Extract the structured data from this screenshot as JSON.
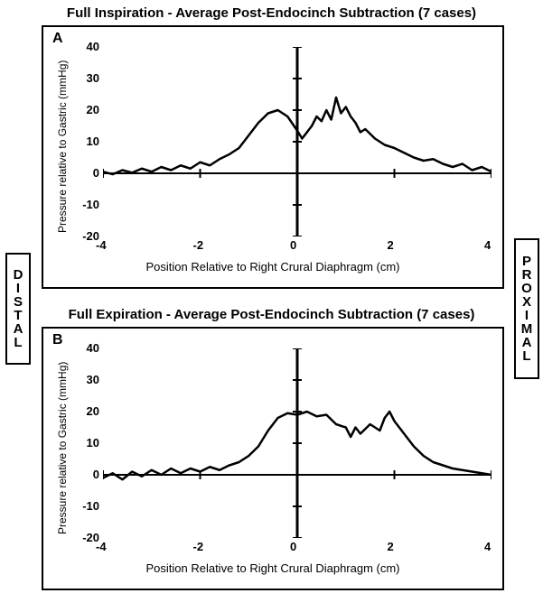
{
  "figure": {
    "background_color": "#ffffff",
    "border_color": "#000000",
    "title_fontsize": 15,
    "panel_letter_fontsize": 16,
    "axis_label_fontsize": 13,
    "tick_fontsize": 13,
    "side_label_fontsize": 15,
    "line_color": "#000000",
    "axis_line_color": "#000000",
    "tick_color": "#000000",
    "line_width": 2.5,
    "axis_width": 2,
    "zero_line_width": 3,
    "side_labels": {
      "left": "DISTAL",
      "right": "PROXIMAL"
    }
  },
  "chartA": {
    "type": "line",
    "title": "Full Inspiration - Average Post-Endocinch Subtraction (7 cases)",
    "panel_letter": "A",
    "xlabel": "Position Relative to Right Crural Diaphragm (cm)",
    "ylabel": "Pressure relative to Gastric (mmHg)",
    "xlim": [
      -4,
      4
    ],
    "ylim": [
      -20,
      40
    ],
    "xticks": [
      -4,
      -2,
      0,
      2,
      4
    ],
    "xtick_labels": [
      "-4",
      "-2",
      "0",
      "2",
      "4"
    ],
    "yticks": [
      -20,
      -10,
      0,
      10,
      20,
      30,
      40
    ],
    "ytick_labels": [
      "-20",
      "-10",
      "0",
      "10",
      "20",
      "30",
      "40"
    ],
    "series": {
      "x": [
        -4.0,
        -3.8,
        -3.6,
        -3.4,
        -3.2,
        -3.0,
        -2.8,
        -2.6,
        -2.4,
        -2.2,
        -2.0,
        -1.8,
        -1.6,
        -1.4,
        -1.2,
        -1.0,
        -0.8,
        -0.6,
        -0.4,
        -0.2,
        0.0,
        0.1,
        0.2,
        0.3,
        0.4,
        0.5,
        0.6,
        0.7,
        0.8,
        0.9,
        1.0,
        1.1,
        1.2,
        1.3,
        1.4,
        1.6,
        1.8,
        2.0,
        2.2,
        2.4,
        2.6,
        2.8,
        3.0,
        3.2,
        3.4,
        3.6,
        3.8,
        4.0
      ],
      "y": [
        0.5,
        -0.3,
        1.0,
        0.2,
        1.5,
        0.5,
        2.0,
        1.0,
        2.5,
        1.5,
        3.5,
        2.5,
        4.5,
        6.0,
        8.0,
        12.0,
        16.0,
        19.0,
        20.0,
        18.0,
        13.5,
        11.0,
        13.0,
        15.0,
        18.0,
        16.5,
        20.0,
        17.0,
        24.0,
        19.0,
        21.0,
        18.0,
        16.0,
        13.0,
        14.0,
        11.0,
        9.0,
        8.0,
        6.5,
        5.0,
        4.0,
        4.5,
        3.0,
        2.0,
        3.0,
        1.0,
        2.0,
        0.5
      ]
    }
  },
  "chartB": {
    "type": "line",
    "title": "Full Expiration - Average Post-Endocinch Subtraction (7 cases)",
    "panel_letter": "B",
    "xlabel": "Position Relative to Right Crural Diaphragm (cm)",
    "ylabel": "Pressure relative to Gastric (mmHg)",
    "xlim": [
      -4,
      4
    ],
    "ylim": [
      -20,
      40
    ],
    "xticks": [
      -4,
      -2,
      0,
      2,
      4
    ],
    "xtick_labels": [
      "-4",
      "-2",
      "0",
      "2",
      "4"
    ],
    "yticks": [
      -20,
      -10,
      0,
      10,
      20,
      30,
      40
    ],
    "ytick_labels": [
      "-20",
      "-10",
      "0",
      "10",
      "20",
      "30",
      "40"
    ],
    "series": {
      "x": [
        -4.0,
        -3.8,
        -3.6,
        -3.4,
        -3.2,
        -3.0,
        -2.8,
        -2.6,
        -2.4,
        -2.2,
        -2.0,
        -1.8,
        -1.6,
        -1.4,
        -1.2,
        -1.0,
        -0.8,
        -0.6,
        -0.4,
        -0.2,
        0.0,
        0.2,
        0.4,
        0.6,
        0.8,
        1.0,
        1.1,
        1.2,
        1.3,
        1.5,
        1.7,
        1.8,
        1.9,
        2.0,
        2.2,
        2.4,
        2.6,
        2.8,
        3.0,
        3.2,
        3.4,
        3.6,
        3.8,
        4.0
      ],
      "y": [
        -1.0,
        0.5,
        -1.5,
        1.0,
        -0.5,
        1.5,
        0.0,
        2.0,
        0.5,
        2.0,
        1.0,
        2.5,
        1.5,
        3.0,
        4.0,
        6.0,
        9.0,
        14.0,
        18.0,
        19.5,
        19.0,
        20.0,
        18.5,
        19.0,
        16.0,
        15.0,
        12.0,
        15.0,
        13.0,
        16.0,
        14.0,
        18.0,
        20.0,
        17.0,
        13.0,
        9.0,
        6.0,
        4.0,
        3.0,
        2.0,
        1.5,
        1.0,
        0.5,
        0.0
      ]
    }
  }
}
